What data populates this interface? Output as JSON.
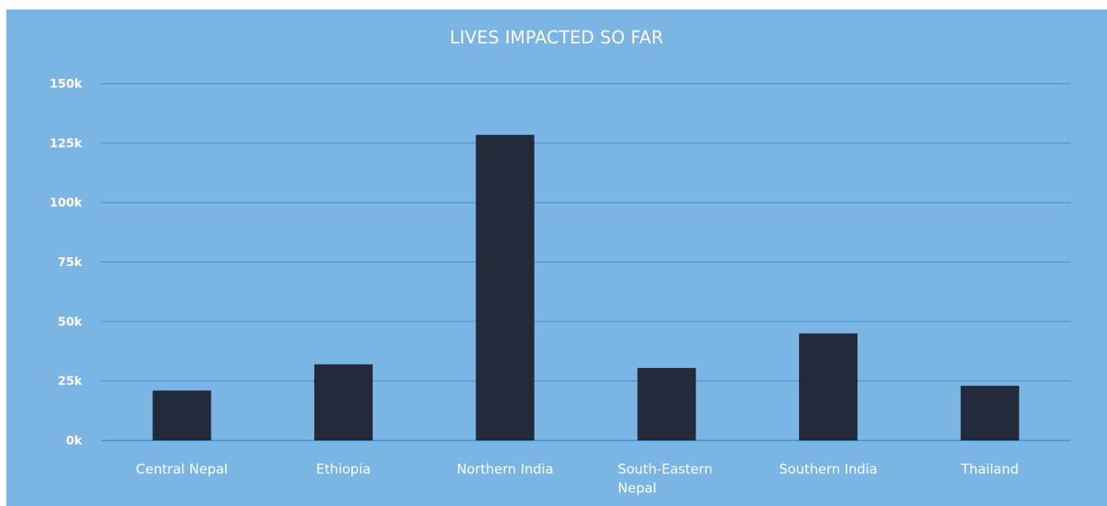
{
  "chart_data": {
    "type": "bar",
    "title": "LIVES IMPACTED SO FAR",
    "categories": [
      "Central Nepal",
      "Ethiopia",
      "Northern India",
      "South-Eastern Nepal",
      "Southern India",
      "Thailand"
    ],
    "category_lines": [
      [
        "Central Nepal"
      ],
      [
        "Ethiopia"
      ],
      [
        "Northern India"
      ],
      [
        "South-Eastern",
        "Nepal"
      ],
      [
        "Southern India"
      ],
      [
        "Thailand"
      ]
    ],
    "values": [
      21000,
      32000,
      128500,
      30500,
      45000,
      23000
    ],
    "ylim": [
      0,
      150000
    ],
    "y_ticks": [
      0,
      25000,
      50000,
      75000,
      100000,
      125000,
      150000
    ],
    "y_tick_labels": [
      "0k",
      "25k",
      "50k",
      "75k",
      "100k",
      "125k",
      "150k"
    ],
    "xlabel": "",
    "ylabel": "",
    "grid": true,
    "colors": {
      "background": "#7ab5e4",
      "bar": "#232b3b",
      "grid": "#4a9ad8",
      "text": "#ffffff"
    }
  }
}
